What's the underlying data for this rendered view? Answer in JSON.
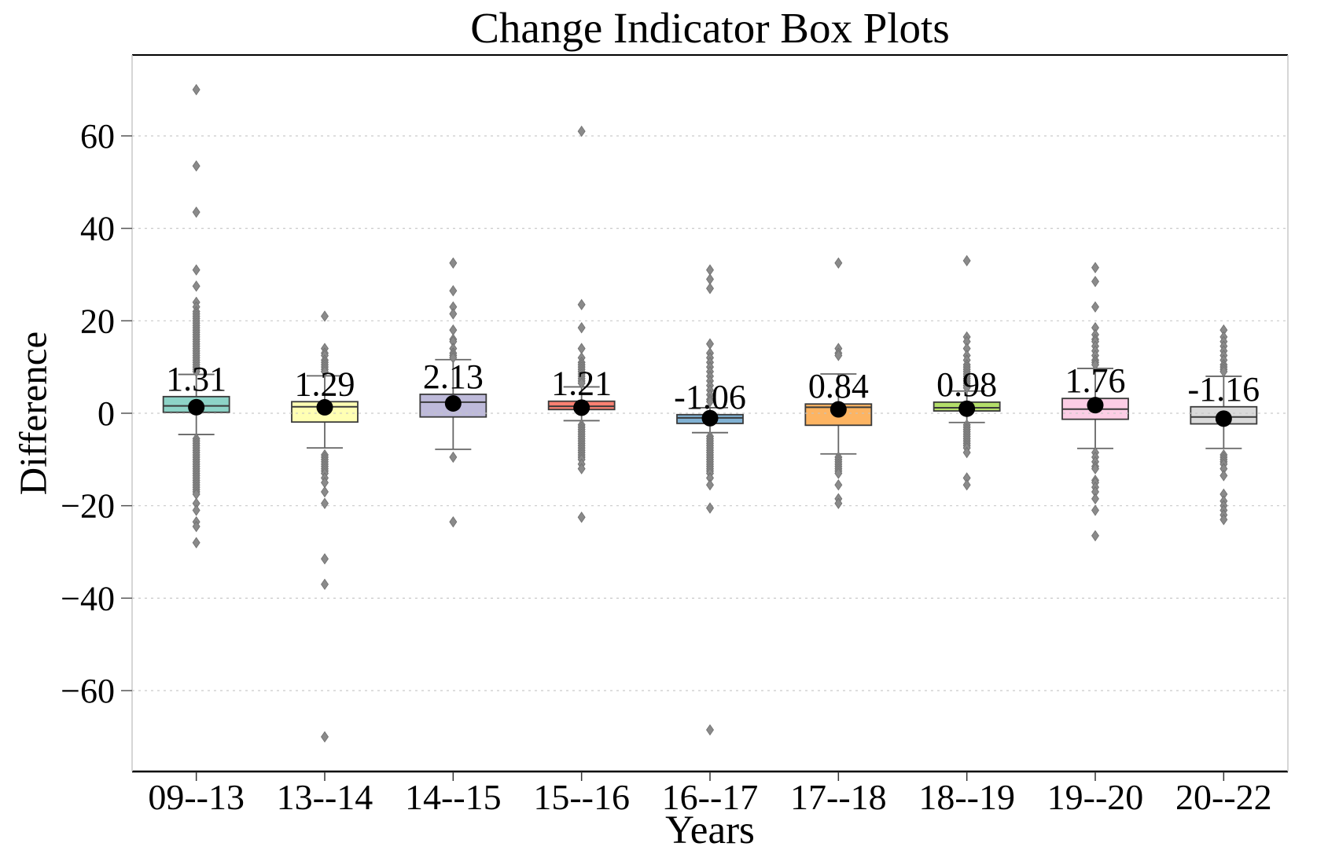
{
  "figure": {
    "title": "Change Indicator Box Plots",
    "xlabel": "Years",
    "ylabel": "Difference"
  },
  "chart_data": {
    "type": "boxplot",
    "title": "Change Indicator Box Plots",
    "xlabel": "Years",
    "ylabel": "Difference",
    "ylim": [
      -77.5,
      77.5
    ],
    "yticks": [
      60,
      40,
      20,
      0,
      -20,
      -40,
      -60
    ],
    "ytick_labels": [
      "60",
      "40",
      "20",
      "0",
      "−20",
      "−40",
      "−60"
    ],
    "grid": "horizontal dashed lines at yticks",
    "legend": "none",
    "categories": [
      "09--13",
      "13--14",
      "14--15",
      "15--16",
      "16--17",
      "17--18",
      "18--19",
      "19--20",
      "20--22"
    ],
    "palette": [
      "#8DD3C7",
      "#FFFFB3",
      "#BEBADA",
      "#FB8072",
      "#80B1D3",
      "#FDB462",
      "#B3DE69",
      "#FCCDE5",
      "#D9D9D9"
    ],
    "style": {
      "box_edge_color": "#3a3a3a",
      "whisker_color": "#666666",
      "median_color": "#3a3a3a",
      "outlier_color": "#8a8a8a",
      "mean_dot_color": "#000000",
      "gridline_color": "#c4c4c4",
      "spine_dark": "#000000",
      "spine_light": "#c8c8c8"
    },
    "boxes": [
      {
        "category": "09--13",
        "color": "#8DD3C7",
        "mean": 1.31,
        "mean_label": "1.31",
        "median": 1.6,
        "q1": 0.2,
        "q3": 3.6,
        "whisker_low": -4.6,
        "whisker_high": 8.4,
        "outliers_high": [
          70,
          53.5,
          43.5,
          31,
          27.5,
          24,
          23,
          22,
          21.5,
          21,
          20.5,
          20,
          19.5,
          19,
          18.5,
          18,
          17.5,
          17,
          16.5,
          16,
          15.5,
          15,
          14.5,
          14,
          13.5,
          13,
          12.5,
          12,
          11.5,
          11,
          10.5,
          10,
          9.5,
          9
        ],
        "outliers_low": [
          -5.5,
          -6,
          -6.5,
          -7,
          -7.5,
          -8,
          -8.5,
          -9,
          -9.5,
          -10,
          -10.5,
          -11,
          -11.5,
          -12,
          -12.5,
          -13,
          -13.5,
          -14,
          -14.5,
          -15,
          -15.5,
          -16,
          -16.5,
          -17,
          -17.5,
          -19.5,
          -21,
          -23.5,
          -24.5,
          -28
        ]
      },
      {
        "category": "13--14",
        "color": "#FFFFB3",
        "mean": 1.29,
        "mean_label": "1.29",
        "median": 1.4,
        "q1": -1.9,
        "q3": 2.5,
        "whisker_low": -7.5,
        "whisker_high": 8.1,
        "outliers_high": [
          21,
          14,
          13,
          12.5,
          11.5,
          11,
          10.5,
          10,
          9.5,
          9
        ],
        "outliers_low": [
          -9,
          -9.5,
          -10,
          -10.5,
          -11,
          -11.5,
          -12,
          -12.5,
          -13,
          -14,
          -15,
          -17,
          -19.5,
          -31.5,
          -37,
          -70
        ]
      },
      {
        "category": "14--15",
        "color": "#BEBADA",
        "mean": 2.13,
        "mean_label": "2.13",
        "median": 2.4,
        "q1": -0.8,
        "q3": 4.1,
        "whisker_low": -7.8,
        "whisker_high": 11.6,
        "outliers_high": [
          32.5,
          26.5,
          23,
          21.5,
          18,
          16,
          15.5,
          14,
          13,
          12.5,
          12
        ],
        "outliers_low": [
          -9.5,
          -23.5
        ]
      },
      {
        "category": "15--16",
        "color": "#FB8072",
        "mean": 1.21,
        "mean_label": "1.21",
        "median": 1.5,
        "q1": 0.8,
        "q3": 2.6,
        "whisker_low": -1.6,
        "whisker_high": 5.7,
        "outliers_high": [
          61,
          23.5,
          18.5,
          14,
          12,
          11,
          10.5,
          10,
          9.5,
          9,
          8.5,
          8,
          7.5,
          7,
          6.5
        ],
        "outliers_low": [
          -2.5,
          -3,
          -3.5,
          -4,
          -4.5,
          -5,
          -5.5,
          -6,
          -6.5,
          -7,
          -7.5,
          -8,
          -8.5,
          -9,
          -9.5,
          -10,
          -11,
          -12,
          -22.5
        ]
      },
      {
        "category": "16--17",
        "color": "#80B1D3",
        "mean": -1.06,
        "mean_label": "-1.06",
        "median": -1.0,
        "q1": -2.2,
        "q3": -0.3,
        "whisker_low": -4.2,
        "whisker_high": 1.2,
        "outliers_high": [
          31,
          29,
          27,
          15,
          13,
          12,
          11,
          10,
          9,
          8,
          7,
          6,
          5,
          4,
          3,
          2.5
        ],
        "outliers_low": [
          -5,
          -5.5,
          -6,
          -6.5,
          -7,
          -7.5,
          -8,
          -8.5,
          -9,
          -9.5,
          -10,
          -10.5,
          -11,
          -11.5,
          -12,
          -12.5,
          -13,
          -14,
          -15.5,
          -20.5,
          -68.5
        ]
      },
      {
        "category": "17--18",
        "color": "#FDB462",
        "mean": 0.84,
        "mean_label": "0.84",
        "median": 1.3,
        "q1": -2.6,
        "q3": 2.0,
        "whisker_low": -8.8,
        "whisker_high": 8.5,
        "outliers_high": [
          32.5,
          14,
          13,
          12.5
        ],
        "outliers_low": [
          -9.5,
          -10,
          -10.5,
          -11,
          -11.5,
          -12,
          -12.5,
          -13,
          -15.5,
          -18.5,
          -19.5
        ]
      },
      {
        "category": "18--19",
        "color": "#B3DE69",
        "mean": 0.98,
        "mean_label": "0.98",
        "median": 1.2,
        "q1": 0.5,
        "q3": 2.4,
        "whisker_low": -2.0,
        "whisker_high": 4.8,
        "outliers_high": [
          33,
          16.5,
          15.5,
          14,
          12.5,
          11.5,
          10.5,
          10,
          9.5,
          9,
          8.5,
          8,
          7.5,
          7,
          6.5,
          6,
          5.5
        ],
        "outliers_low": [
          -2.5,
          -3,
          -3.5,
          -4,
          -4.5,
          -5,
          -5.5,
          -6,
          -6.5,
          -7,
          -7.5,
          -8.5,
          -14,
          -15.5
        ]
      },
      {
        "category": "19--20",
        "color": "#FCCDE5",
        "mean": 1.76,
        "mean_label": "1.76",
        "median": 0.9,
        "q1": -1.3,
        "q3": 3.2,
        "whisker_low": -7.6,
        "whisker_high": 9.7,
        "outliers_high": [
          31.5,
          28.5,
          23,
          18.5,
          17,
          16,
          15.5,
          14.5,
          13.5,
          12.5,
          11.5,
          11,
          10.5
        ],
        "outliers_low": [
          -8.5,
          -9.5,
          -10.5,
          -11.5,
          -12,
          -14.5,
          -15,
          -16,
          -17,
          -18.5,
          -21,
          -26.5
        ]
      },
      {
        "category": "20--22",
        "color": "#D9D9D9",
        "mean": -1.16,
        "mean_label": "-1.16",
        "median": -0.8,
        "q1": -2.3,
        "q3": 1.4,
        "whisker_low": -7.6,
        "whisker_high": 8.0,
        "outliers_high": [
          18,
          16.5,
          15.5,
          14.5,
          13.5,
          12.5,
          11.5,
          10.5,
          10,
          9.5,
          9
        ],
        "outliers_low": [
          -9,
          -9.5,
          -10,
          -10.5,
          -11,
          -12,
          -13.5,
          -17.5,
          -19,
          -20,
          -21,
          -22,
          -23
        ]
      }
    ]
  }
}
